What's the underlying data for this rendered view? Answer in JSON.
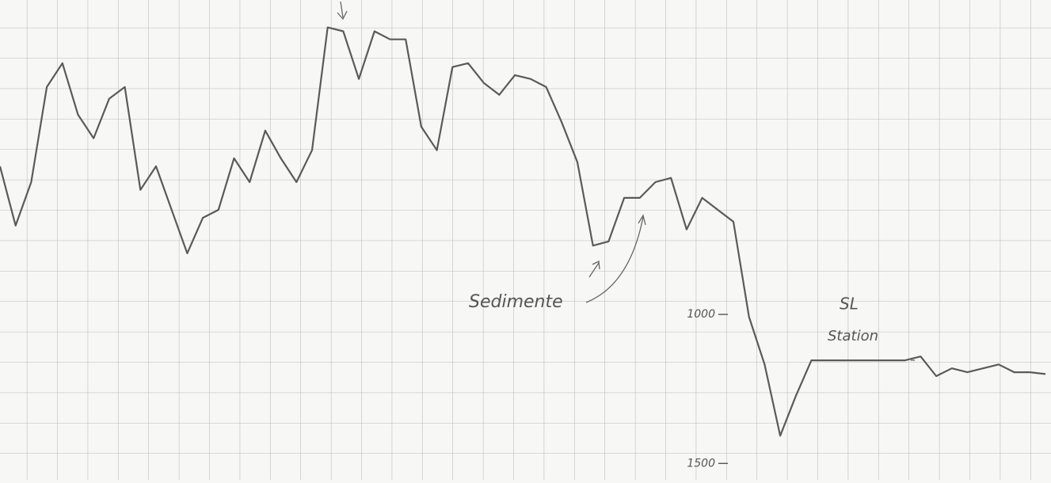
{
  "chart_data": {
    "type": "line",
    "series": [
      {
        "name": null,
        "color": "#5a5a5a",
        "values": [
          503,
          702,
          556,
          237,
          157,
          330,
          409,
          276,
          237,
          582,
          503,
          649,
          795,
          676,
          649,
          476,
          556,
          383,
          476,
          556,
          449,
          37,
          50,
          210,
          50,
          77,
          77,
          370,
          449,
          170,
          157,
          223,
          263,
          197,
          210,
          237,
          356,
          489,
          769,
          755,
          609,
          609,
          556,
          542,
          715,
          609,
          649,
          689,
          1008,
          1168,
          1407,
          1274,
          1154,
          1154,
          1154,
          1154,
          1154,
          1154,
          1154,
          1141,
          1207,
          1181,
          1194,
          1181,
          1168,
          1194,
          1194,
          1200
        ]
      }
    ],
    "ylim": [
      -55,
      1555
    ],
    "y_inverted": true,
    "yticks": [
      1000,
      1500
    ],
    "annotations": [
      "Sedimente",
      "SL",
      "Station"
    ]
  }
}
